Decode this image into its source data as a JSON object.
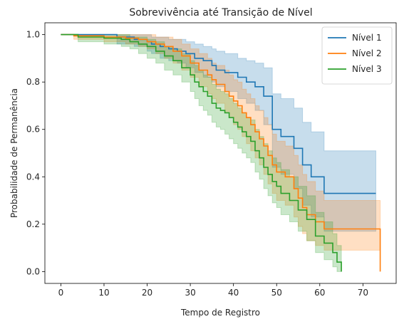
{
  "chart_data": {
    "type": "line",
    "title": "Sobrevivência até Transição de Nível",
    "xlabel": "Tempo de Registro",
    "ylabel": "Probabilidade de Permanência",
    "xlim": [
      -3.7,
      77.7
    ],
    "ylim": [
      -0.05,
      1.05
    ],
    "x_ticks": [
      0,
      10,
      20,
      30,
      40,
      50,
      60,
      70
    ],
    "y_ticks": [
      0.0,
      0.2,
      0.4,
      0.6,
      0.8,
      1.0
    ],
    "x_tick_labels": [
      "0",
      "10",
      "20",
      "30",
      "40",
      "50",
      "60",
      "70"
    ],
    "y_tick_labels": [
      "0.0",
      "0.2",
      "0.4",
      "0.6",
      "0.8",
      "1.0"
    ],
    "grid": false,
    "legend_position": "top-right",
    "step": true,
    "series": [
      {
        "name": "Nível 1",
        "color": "#1f77b4",
        "x": [
          0,
          13,
          17,
          20,
          21,
          23,
          25,
          27,
          29,
          31,
          33,
          35,
          36,
          38,
          41,
          43,
          45,
          47,
          49,
          51,
          54,
          56,
          58,
          61,
          73
        ],
        "y": [
          1.0,
          0.99,
          0.98,
          0.97,
          0.96,
          0.95,
          0.94,
          0.93,
          0.92,
          0.9,
          0.89,
          0.87,
          0.85,
          0.84,
          0.82,
          0.8,
          0.78,
          0.74,
          0.6,
          0.57,
          0.52,
          0.45,
          0.4,
          0.33,
          0.33
        ],
        "ci_upper": [
          1.0,
          1.0,
          1.0,
          1.0,
          0.99,
          0.99,
          0.98,
          0.98,
          0.97,
          0.96,
          0.95,
          0.94,
          0.93,
          0.92,
          0.9,
          0.89,
          0.88,
          0.86,
          0.75,
          0.73,
          0.69,
          0.63,
          0.59,
          0.51,
          0.51
        ],
        "ci_lower": [
          1.0,
          0.96,
          0.95,
          0.93,
          0.92,
          0.9,
          0.89,
          0.88,
          0.86,
          0.84,
          0.82,
          0.8,
          0.78,
          0.76,
          0.73,
          0.71,
          0.68,
          0.62,
          0.44,
          0.41,
          0.35,
          0.28,
          0.23,
          0.17,
          0.17
        ]
      },
      {
        "name": "Nível 2",
        "color": "#ff7f0e",
        "x": [
          0,
          3,
          10,
          15,
          18,
          20,
          22,
          24,
          26,
          28,
          30,
          32,
          34,
          35,
          36,
          38,
          39,
          40,
          41,
          42,
          43,
          44,
          45,
          46,
          47,
          48,
          49,
          50,
          52,
          54,
          55,
          56,
          57,
          59,
          61,
          74
        ],
        "y": [
          1.0,
          0.995,
          0.99,
          0.985,
          0.98,
          0.97,
          0.96,
          0.95,
          0.93,
          0.91,
          0.88,
          0.85,
          0.83,
          0.81,
          0.79,
          0.76,
          0.74,
          0.72,
          0.7,
          0.67,
          0.65,
          0.62,
          0.59,
          0.56,
          0.53,
          0.49,
          0.45,
          0.42,
          0.4,
          0.35,
          0.31,
          0.27,
          0.24,
          0.21,
          0.18,
          0.0
        ],
        "ci_upper": [
          1.0,
          1.0,
          1.0,
          1.0,
          1.0,
          1.0,
          0.99,
          0.99,
          0.98,
          0.96,
          0.94,
          0.92,
          0.9,
          0.88,
          0.87,
          0.85,
          0.83,
          0.81,
          0.8,
          0.77,
          0.75,
          0.73,
          0.7,
          0.68,
          0.65,
          0.62,
          0.58,
          0.55,
          0.53,
          0.49,
          0.45,
          0.41,
          0.38,
          0.34,
          0.3,
          0.3
        ],
        "ci_lower": [
          1.0,
          0.98,
          0.97,
          0.96,
          0.95,
          0.94,
          0.92,
          0.9,
          0.88,
          0.85,
          0.82,
          0.78,
          0.75,
          0.73,
          0.71,
          0.67,
          0.65,
          0.62,
          0.6,
          0.57,
          0.54,
          0.51,
          0.48,
          0.45,
          0.41,
          0.37,
          0.33,
          0.3,
          0.28,
          0.23,
          0.19,
          0.16,
          0.13,
          0.11,
          0.09,
          0.09
        ]
      },
      {
        "name": "Nível 3",
        "color": "#2ca02c",
        "x": [
          0,
          4,
          10,
          14,
          16,
          18,
          20,
          22,
          24,
          26,
          28,
          30,
          31,
          32,
          33,
          34,
          35,
          36,
          37,
          38,
          39,
          40,
          41,
          42,
          43,
          44,
          45,
          46,
          47,
          48,
          49,
          50,
          51,
          53,
          55,
          57,
          59,
          61,
          63,
          64,
          65
        ],
        "y": [
          1.0,
          0.99,
          0.985,
          0.98,
          0.97,
          0.96,
          0.95,
          0.93,
          0.91,
          0.89,
          0.86,
          0.83,
          0.8,
          0.78,
          0.76,
          0.74,
          0.71,
          0.69,
          0.68,
          0.67,
          0.65,
          0.63,
          0.61,
          0.59,
          0.57,
          0.55,
          0.51,
          0.48,
          0.44,
          0.41,
          0.38,
          0.36,
          0.33,
          0.3,
          0.26,
          0.22,
          0.15,
          0.12,
          0.08,
          0.04,
          0.0
        ],
        "ci_upper": [
          1.0,
          1.0,
          1.0,
          1.0,
          0.99,
          0.99,
          0.98,
          0.97,
          0.95,
          0.94,
          0.92,
          0.89,
          0.87,
          0.85,
          0.83,
          0.82,
          0.79,
          0.77,
          0.76,
          0.75,
          0.73,
          0.71,
          0.69,
          0.67,
          0.65,
          0.64,
          0.6,
          0.57,
          0.54,
          0.51,
          0.48,
          0.46,
          0.43,
          0.4,
          0.36,
          0.32,
          0.25,
          0.21,
          0.16,
          0.11,
          0.11
        ],
        "ci_lower": [
          1.0,
          0.97,
          0.96,
          0.95,
          0.94,
          0.92,
          0.9,
          0.88,
          0.85,
          0.83,
          0.8,
          0.76,
          0.73,
          0.7,
          0.68,
          0.66,
          0.63,
          0.61,
          0.6,
          0.58,
          0.56,
          0.54,
          0.52,
          0.5,
          0.48,
          0.46,
          0.42,
          0.39,
          0.35,
          0.32,
          0.29,
          0.27,
          0.24,
          0.21,
          0.17,
          0.13,
          0.08,
          0.05,
          0.02,
          0.0,
          0.0
        ]
      }
    ]
  }
}
